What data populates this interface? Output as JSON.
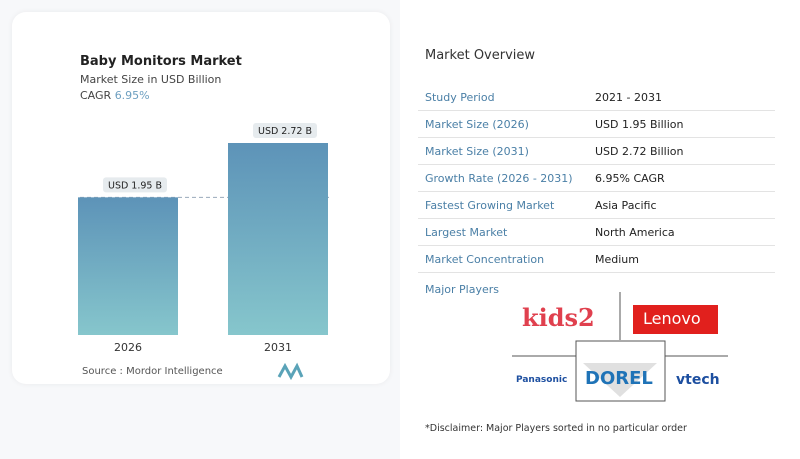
{
  "chart": {
    "title": "Baby Monitors Market",
    "subtitle": "Market Size in USD Billion",
    "cagr_label": "CAGR",
    "cagr_value": "6.95%",
    "source": "Source :  Mordor Intelligence"
  },
  "chart_data": {
    "type": "bar",
    "title": "Baby Monitors Market",
    "categories": [
      "2026",
      "2031"
    ],
    "values": [
      1.95,
      2.72
    ],
    "data_labels": [
      "USD 1.95 B",
      "USD 2.72 B"
    ],
    "ylim": [
      0,
      2.72
    ],
    "colors": [
      "#5d93b8",
      "#86c6cc"
    ],
    "reference_line": 1.95
  },
  "overview": {
    "title": "Market Overview",
    "rows": [
      {
        "label": "Study Period",
        "value": "2021 - 2031"
      },
      {
        "label": "Market Size (2026)",
        "value": "USD 1.95 Billion"
      },
      {
        "label": "Market Size (2031)",
        "value": "USD 2.72 Billion"
      },
      {
        "label": "Growth Rate (2026 - 2031)",
        "value": "6.95% CAGR"
      },
      {
        "label": "Fastest Growing Market",
        "value": "Asia Pacific"
      },
      {
        "label": "Largest Market",
        "value": "North America"
      },
      {
        "label": "Market Concentration",
        "value": "Medium"
      }
    ],
    "major_players_label": "Major Players",
    "players": [
      "kids2",
      "Lenovo",
      "Panasonic",
      "DOREL",
      "vtech"
    ],
    "disclaimer": "*Disclaimer: Major Players sorted in no particular order"
  }
}
